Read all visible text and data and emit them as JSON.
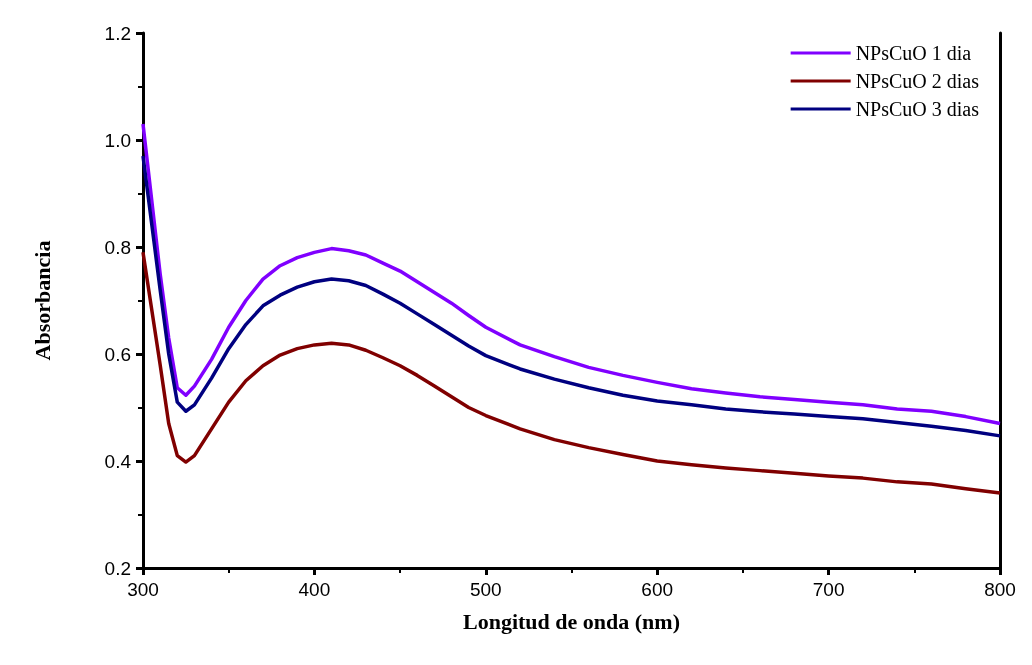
{
  "chart_data": {
    "type": "line",
    "xlabel": "Longitud de onda (nm)",
    "ylabel": "Absorbancia",
    "xlim": [
      300,
      800
    ],
    "xticks": [
      300,
      400,
      500,
      600,
      700,
      800
    ],
    "ylim": [
      0.2,
      1.2
    ],
    "yticks": [
      0.2,
      0.4,
      0.6,
      0.8,
      {
        "value": 1,
        "label": "1.0"
      },
      1.2
    ],
    "grid": false,
    "legend": "top right",
    "marker": "none",
    "line_style": "solid",
    "series": [
      {
        "name": "NPsCuO 1 dia",
        "color": "#8000ff",
        "x": [
          300,
          310,
          315,
          320,
          325,
          330,
          340,
          350,
          360,
          370,
          380,
          390,
          400,
          410,
          420,
          430,
          440,
          450,
          460,
          470,
          480,
          490,
          500,
          520,
          540,
          560,
          580,
          600,
          620,
          640,
          660,
          680,
          700,
          720,
          740,
          760,
          780,
          800
        ],
        "values": [
          1.03,
          0.75,
          0.63,
          0.537,
          0.523,
          0.54,
          0.59,
          0.65,
          0.7,
          0.74,
          0.765,
          0.78,
          0.79,
          0.797,
          0.793,
          0.785,
          0.77,
          0.755,
          0.735,
          0.715,
          0.695,
          0.672,
          0.65,
          0.617,
          0.595,
          0.575,
          0.56,
          0.547,
          0.535,
          0.527,
          0.52,
          0.515,
          0.51,
          0.505,
          0.497,
          0.493,
          0.483,
          0.47
        ]
      },
      {
        "name": "NPsCuO 2 dias",
        "color": "#800000",
        "x": [
          300,
          310,
          315,
          320,
          325,
          330,
          340,
          350,
          360,
          370,
          380,
          390,
          400,
          410,
          420,
          430,
          440,
          450,
          460,
          470,
          480,
          490,
          500,
          520,
          540,
          560,
          580,
          600,
          620,
          640,
          660,
          680,
          700,
          720,
          740,
          760,
          780,
          800
        ],
        "values": [
          0.79,
          0.58,
          0.47,
          0.41,
          0.398,
          0.41,
          0.46,
          0.51,
          0.55,
          0.578,
          0.598,
          0.61,
          0.617,
          0.62,
          0.617,
          0.607,
          0.593,
          0.578,
          0.56,
          0.54,
          0.52,
          0.5,
          0.485,
          0.46,
          0.44,
          0.425,
          0.412,
          0.4,
          0.393,
          0.387,
          0.382,
          0.377,
          0.372,
          0.368,
          0.361,
          0.357,
          0.348,
          0.34
        ]
      },
      {
        "name": "NPsCuO 3 dias",
        "color": "#000080",
        "x": [
          300,
          310,
          315,
          320,
          325,
          330,
          340,
          350,
          360,
          370,
          380,
          390,
          400,
          410,
          420,
          430,
          440,
          450,
          460,
          470,
          480,
          490,
          500,
          520,
          540,
          560,
          580,
          600,
          620,
          640,
          660,
          680,
          700,
          720,
          740,
          760,
          780,
          800
        ],
        "values": [
          0.97,
          0.72,
          0.6,
          0.51,
          0.493,
          0.505,
          0.555,
          0.61,
          0.655,
          0.69,
          0.71,
          0.725,
          0.735,
          0.74,
          0.737,
          0.728,
          0.712,
          0.695,
          0.675,
          0.655,
          0.635,
          0.615,
          0.597,
          0.572,
          0.553,
          0.537,
          0.523,
          0.512,
          0.505,
          0.497,
          0.492,
          0.488,
          0.483,
          0.479,
          0.472,
          0.465,
          0.457,
          0.447
        ]
      }
    ]
  }
}
